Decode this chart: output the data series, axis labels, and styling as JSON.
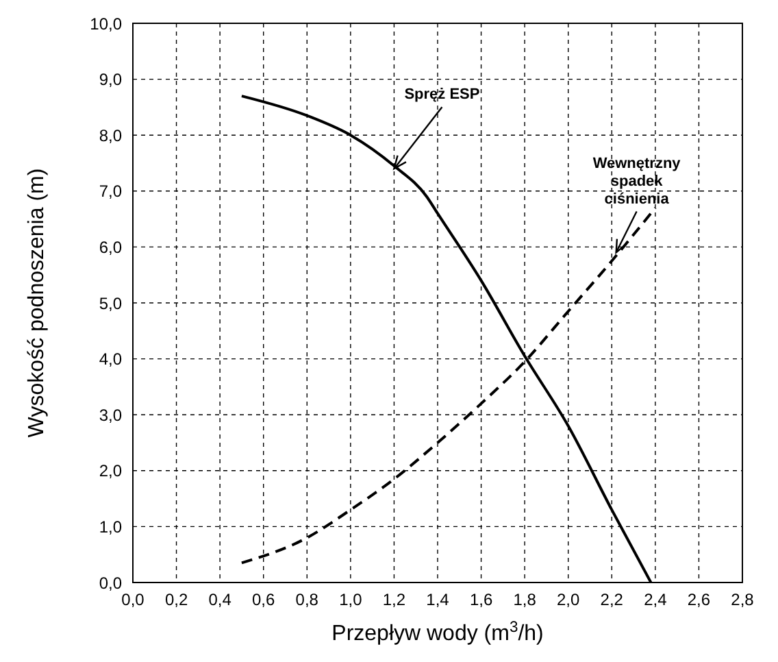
{
  "chart_data": {
    "type": "line",
    "xlabel": "Przepływ wody (m$^{3}$/h)",
    "ylabel": "Wysokość podnoszenia (m)",
    "xlim": [
      0,
      2.8
    ],
    "ylim": [
      0,
      10
    ],
    "xticks": [
      {
        "value": 0,
        "label": "0,0"
      },
      {
        "value": 0.2,
        "label": "0,2"
      },
      {
        "value": 0.4,
        "label": "0,4"
      },
      {
        "value": 0.6,
        "label": "0,6"
      },
      {
        "value": 0.8,
        "label": "0,8"
      },
      {
        "value": 1,
        "label": "1,0"
      },
      {
        "value": 1.2,
        "label": "1,2"
      },
      {
        "value": 1.4,
        "label": "1,4"
      },
      {
        "value": 1.6,
        "label": "1,6"
      },
      {
        "value": 1.8,
        "label": "1,8"
      },
      {
        "value": 2,
        "label": "2,0"
      },
      {
        "value": 2.2,
        "label": "2,2"
      },
      {
        "value": 2.4,
        "label": "2,4"
      },
      {
        "value": 2.6,
        "label": "2,6"
      },
      {
        "value": 2.8,
        "label": "2,8"
      }
    ],
    "yticks": [
      {
        "value": 0,
        "label": "0,0"
      },
      {
        "value": 1,
        "label": "1,0"
      },
      {
        "value": 2,
        "label": "2,0"
      },
      {
        "value": 3,
        "label": "3,0"
      },
      {
        "value": 4,
        "label": "4,0"
      },
      {
        "value": 5,
        "label": "5,0"
      },
      {
        "value": 6,
        "label": "6,0"
      },
      {
        "value": 7,
        "label": "7,0"
      },
      {
        "value": 8,
        "label": "8,0"
      },
      {
        "value": 9,
        "label": "9,0"
      },
      {
        "value": 10,
        "label": "10,0"
      }
    ],
    "grid": true,
    "marker": "none",
    "series": [
      {
        "color": "#000000",
        "line_style": "solid",
        "x": [
          0.5,
          0.8,
          1.0,
          1.2,
          1.35,
          1.4,
          1.6,
          1.8,
          2.0,
          2.2,
          2.38
        ],
        "values": [
          8.7,
          8.35,
          8.0,
          7.45,
          6.9,
          6.6,
          5.4,
          4.05,
          2.8,
          1.3,
          0
        ]
      },
      {
        "color": "#000000",
        "line_style": "dashed",
        "x": [
          0.5,
          0.8,
          1.0,
          1.2,
          1.4,
          1.6,
          1.8,
          2.0,
          2.2,
          2.4
        ],
        "values": [
          0.35,
          0.8,
          1.3,
          1.85,
          2.5,
          3.2,
          3.95,
          4.85,
          5.75,
          6.7
        ]
      }
    ],
    "annotations": [
      {
        "text": "Spręż ESP",
        "x": 1.2,
        "y": 7.4
      },
      {
        "text": "Wewnętrzny spadek ciśnienia",
        "x": 2.22,
        "y": 5.9
      }
    ]
  }
}
